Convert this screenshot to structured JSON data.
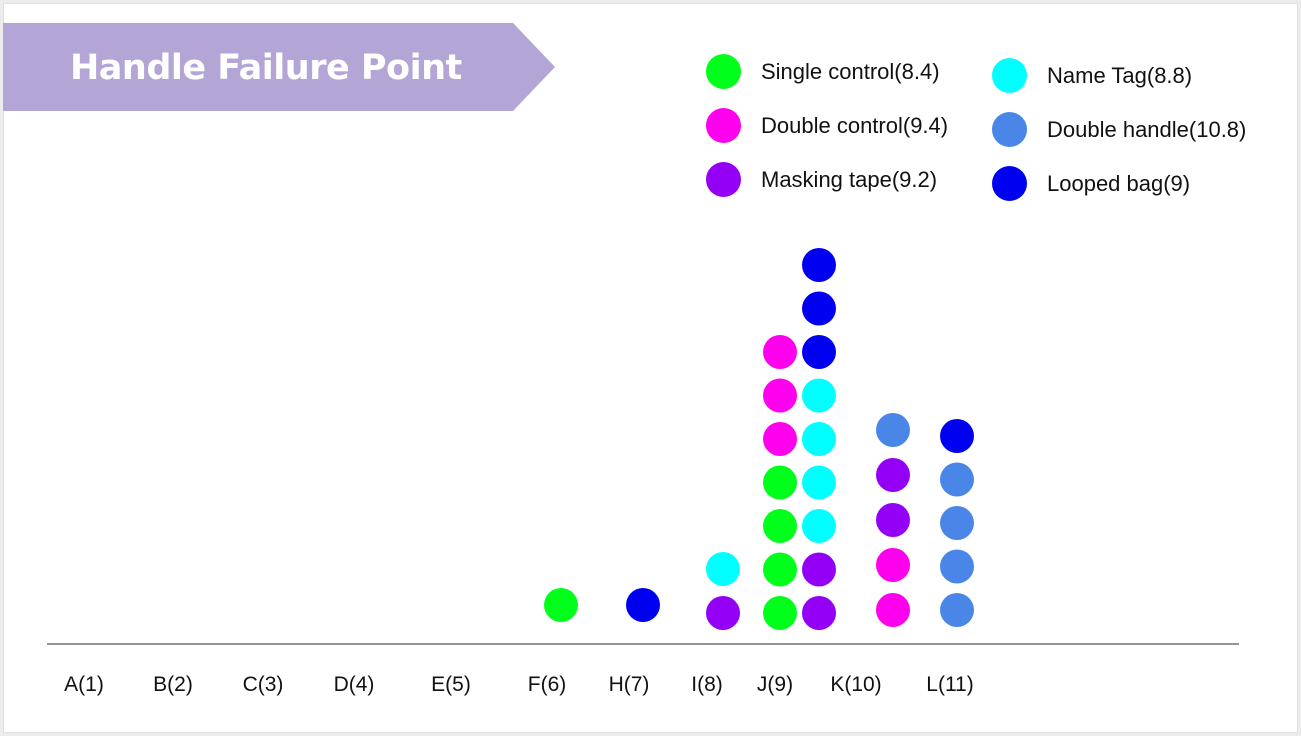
{
  "title": "Handle Failure Point",
  "colors": {
    "banner": "#b3a6d6",
    "axis": "#555555"
  },
  "legend": [
    {
      "label": "Single control(8.4)",
      "color": "#00ff1a"
    },
    {
      "label": "Double control(9.4)",
      "color": "#ff00ee"
    },
    {
      "label": "Masking tape(9.2)",
      "color": "#9400f5"
    },
    {
      "label": "Name Tag(8.8)",
      "color": "#00ffff"
    },
    {
      "label": "Double handle(10.8)",
      "color": "#4a86e8"
    },
    {
      "label": "Looped bag(9)",
      "color": "#0000f0"
    }
  ],
  "chart_data": {
    "type": "scatter",
    "subtype": "dot-plot",
    "title": "Handle Failure Point",
    "categories": [
      "A(1)",
      "B(2)",
      "C(3)",
      "D(4)",
      "E(5)",
      "F(6)",
      "H(7)",
      "I(8)",
      "J(9)",
      "K(10)",
      "L(11)"
    ],
    "legend_position": "top-right",
    "grid": false,
    "series": [
      {
        "name": "Single control(8.4)",
        "color": "#00ff1a",
        "values": [
          6,
          9,
          9,
          9,
          9
        ]
      },
      {
        "name": "Double control(9.4)",
        "color": "#ff00ee",
        "values": [
          9,
          9,
          9,
          10,
          10
        ]
      },
      {
        "name": "Masking tape(9.2)",
        "color": "#9400f5",
        "values": [
          8,
          9,
          9,
          10,
          10
        ]
      },
      {
        "name": "Name Tag(8.8)",
        "color": "#00ffff",
        "values": [
          8,
          9,
          9,
          9,
          9
        ]
      },
      {
        "name": "Double handle(10.8)",
        "color": "#4a86e8",
        "values": [
          10,
          11,
          11,
          11,
          11
        ]
      },
      {
        "name": "Looped bag(9)",
        "color": "#0000f0",
        "values": [
          7,
          9,
          9,
          9,
          11
        ]
      }
    ]
  }
}
